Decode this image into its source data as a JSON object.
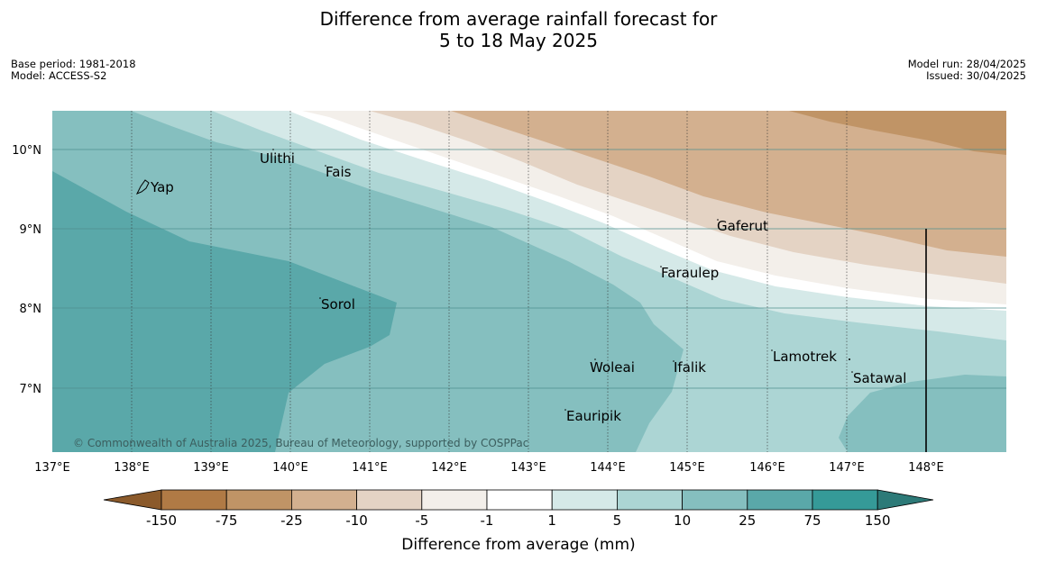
{
  "title": {
    "line1": "Difference from average rainfall forecast for",
    "line2": "5 to 18 May 2025"
  },
  "meta_left": [
    "Base period: 1981-2018",
    "Model: ACCESS-S2"
  ],
  "meta_right": [
    "Model run: 28/04/2025",
    "Issued: 30/04/2025"
  ],
  "lat_ticks": [
    "10°N",
    "9°N",
    "8°N",
    "7°N"
  ],
  "lon_ticks": [
    "137°E",
    "138°E",
    "139°E",
    "140°E",
    "141°E",
    "142°E",
    "143°E",
    "144°E",
    "145°E",
    "146°E",
    "147°E",
    "148°E"
  ],
  "places": [
    "Ulithi",
    "Fais",
    "Yap",
    "Gaferut",
    "Faraulep",
    "Sorol",
    "Lamotrek",
    "Woleai",
    "Ifalik",
    "Satawal",
    "Eauripik"
  ],
  "copyright": "© Commonwealth of Australia 2025, Bureau of Meteorology, supported by COSPPac",
  "colorbar": {
    "ticks": [
      "-150",
      "-75",
      "-25",
      "-10",
      "-5",
      "-1",
      "1",
      "5",
      "10",
      "25",
      "75",
      "150"
    ],
    "colors": [
      "#8b5a2b",
      "#b07a45",
      "#c09466",
      "#d3b08f",
      "#e4d3c4",
      "#f3efea",
      "#ffffff",
      "#d5e9e8",
      "#acd5d4",
      "#85bfbf",
      "#5aa8a9",
      "#359a98",
      "#2d7a78"
    ],
    "label": "Difference from average (mm)"
  }
}
